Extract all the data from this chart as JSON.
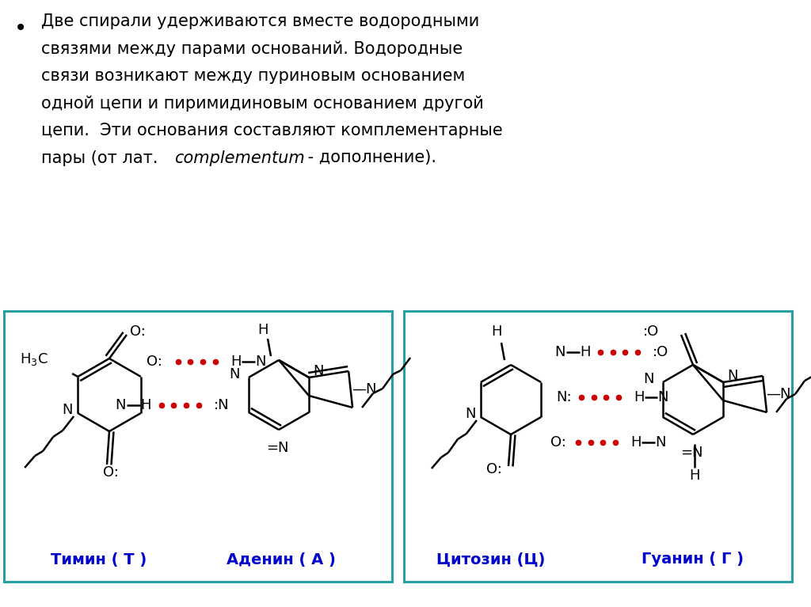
{
  "bg_color": "#ffffff",
  "border_color": "#26a0a0",
  "text_color": "#000000",
  "blue_color": "#0000cc",
  "red_color": "#cc0000",
  "label_thymine": "Тимин ( Т )",
  "label_adenine": "Аденин ( А )",
  "label_cytosine": "Цитозин (Ц)",
  "label_guanine": "Гуанин ( Г )",
  "fig_width": 10.24,
  "fig_height": 7.67,
  "dpi": 100
}
